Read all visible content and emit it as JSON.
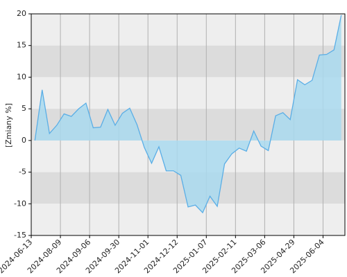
{
  "chart_data": {
    "type": "area",
    "y_label": "[Zmiany %]",
    "values": [
      0,
      8.0,
      1.1,
      2.4,
      4.2,
      3.8,
      5.0,
      5.9,
      2.0,
      2.1,
      4.9,
      2.4,
      4.3,
      5.1,
      2.5,
      -1.1,
      -3.6,
      -1.0,
      -4.8,
      -4.8,
      -5.5,
      -10.5,
      -10.2,
      -11.4,
      -8.8,
      -10.4,
      -3.7,
      -2.1,
      -1.2,
      -1.7,
      1.5,
      -0.9,
      -1.6,
      3.9,
      4.4,
      3.3,
      9.6,
      8.8,
      9.5,
      13.5,
      13.6,
      14.3,
      19.8
    ],
    "line_color": "#5aaee6",
    "fill_color": "#a9d9ef",
    "xlim": [
      -0.5,
      42.5
    ],
    "xticks": [
      {
        "value": -0.5,
        "label": "2024-06-13"
      },
      {
        "value": 3.5,
        "label": "2024-08-09"
      },
      {
        "value": 7.5,
        "label": "2024-09-06"
      },
      {
        "value": 11.5,
        "label": "2024-09-30"
      },
      {
        "value": 15.5,
        "label": "2024-11-01"
      },
      {
        "value": 19.5,
        "label": "2024-12-12"
      },
      {
        "value": 23.5,
        "label": "2025-01-07"
      },
      {
        "value": 27.5,
        "label": "2025-02-11"
      },
      {
        "value": 31.5,
        "label": "2025-03-06"
      },
      {
        "value": 35.5,
        "label": "2025-04-29"
      },
      {
        "value": 39.5,
        "label": "2025-06-04"
      }
    ],
    "ylim": [
      -15,
      20
    ],
    "yticks": [
      20,
      15,
      10,
      5,
      0,
      -5,
      -10,
      -15
    ],
    "grid": true
  }
}
